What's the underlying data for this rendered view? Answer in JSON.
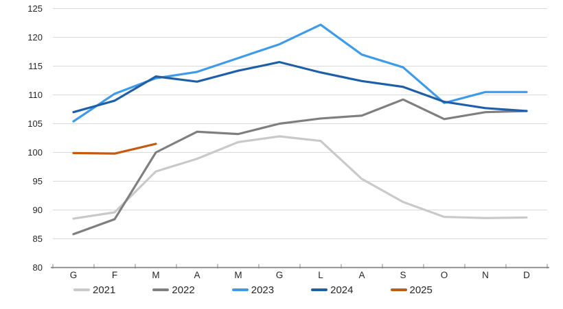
{
  "chart_data": {
    "type": "line",
    "title": "",
    "xlabel": "",
    "ylabel": "",
    "categories": [
      "G",
      "F",
      "M",
      "A",
      "M",
      "G",
      "L",
      "A",
      "S",
      "O",
      "N",
      "D"
    ],
    "series": [
      {
        "name": "2021",
        "color": "#C9C9C9",
        "values": [
          88.5,
          89.6,
          96.7,
          98.9,
          101.8,
          102.8,
          102.0,
          95.4,
          91.4,
          88.8,
          88.6,
          88.7
        ]
      },
      {
        "name": "2022",
        "color": "#7F7F7F",
        "values": [
          85.8,
          88.4,
          100.0,
          103.6,
          103.2,
          105.0,
          105.9,
          106.4,
          109.2,
          105.8,
          107.0,
          107.2
        ]
      },
      {
        "name": "2023",
        "color": "#3D9BE9",
        "values": [
          105.4,
          110.2,
          112.9,
          114.0,
          116.4,
          118.8,
          122.2,
          117.0,
          114.8,
          108.6,
          110.5,
          110.5
        ]
      },
      {
        "name": "2024",
        "color": "#1F5FA8",
        "values": [
          107.0,
          109.0,
          113.2,
          112.3,
          114.2,
          115.7,
          113.9,
          112.4,
          111.4,
          108.8,
          107.7,
          107.2
        ]
      },
      {
        "name": "2025",
        "color": "#C55A11",
        "values": [
          99.9,
          99.8,
          101.5
        ]
      }
    ],
    "ylim": [
      80,
      125
    ],
    "ytick_step": 5,
    "yticks": [
      "80",
      "85",
      "90",
      "95",
      "100",
      "105",
      "110",
      "115",
      "120",
      "125"
    ],
    "grid": true,
    "legend_position": "bottom",
    "colors": {
      "grid_line": "#D9D9D9",
      "axis_line": "#808080",
      "tick_mark": "#808080",
      "axis_text": "#262626",
      "background": "#FFFFFF"
    }
  }
}
